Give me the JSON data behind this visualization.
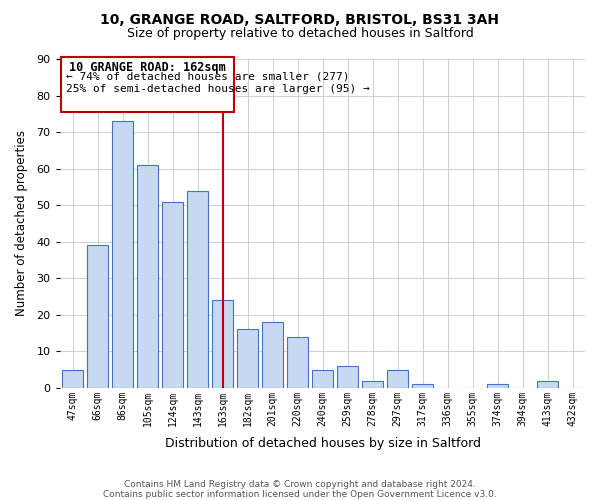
{
  "title1": "10, GRANGE ROAD, SALTFORD, BRISTOL, BS31 3AH",
  "title2": "Size of property relative to detached houses in Saltford",
  "xlabel": "Distribution of detached houses by size in Saltford",
  "ylabel": "Number of detached properties",
  "bar_labels": [
    "47sqm",
    "66sqm",
    "86sqm",
    "105sqm",
    "124sqm",
    "143sqm",
    "163sqm",
    "182sqm",
    "201sqm",
    "220sqm",
    "240sqm",
    "259sqm",
    "278sqm",
    "297sqm",
    "317sqm",
    "336sqm",
    "355sqm",
    "374sqm",
    "394sqm",
    "413sqm",
    "432sqm"
  ],
  "bar_values": [
    5,
    39,
    73,
    61,
    51,
    54,
    24,
    16,
    18,
    14,
    5,
    6,
    2,
    5,
    1,
    0,
    0,
    1,
    0,
    2,
    0
  ],
  "bar_color": "#c6d9f1",
  "bar_edge_color": "#4472c4",
  "highlight_bar_index": 6,
  "highlight_color": "#c00000",
  "ylim": [
    0,
    90
  ],
  "yticks": [
    0,
    10,
    20,
    30,
    40,
    50,
    60,
    70,
    80,
    90
  ],
  "annotation_title": "10 GRANGE ROAD: 162sqm",
  "annotation_line1": "← 74% of detached houses are smaller (277)",
  "annotation_line2": "25% of semi-detached houses are larger (95) →",
  "footer1": "Contains HM Land Registry data © Crown copyright and database right 2024.",
  "footer2": "Contains public sector information licensed under the Open Government Licence v3.0.",
  "background_color": "#ffffff",
  "grid_color": "#c8d0d8"
}
